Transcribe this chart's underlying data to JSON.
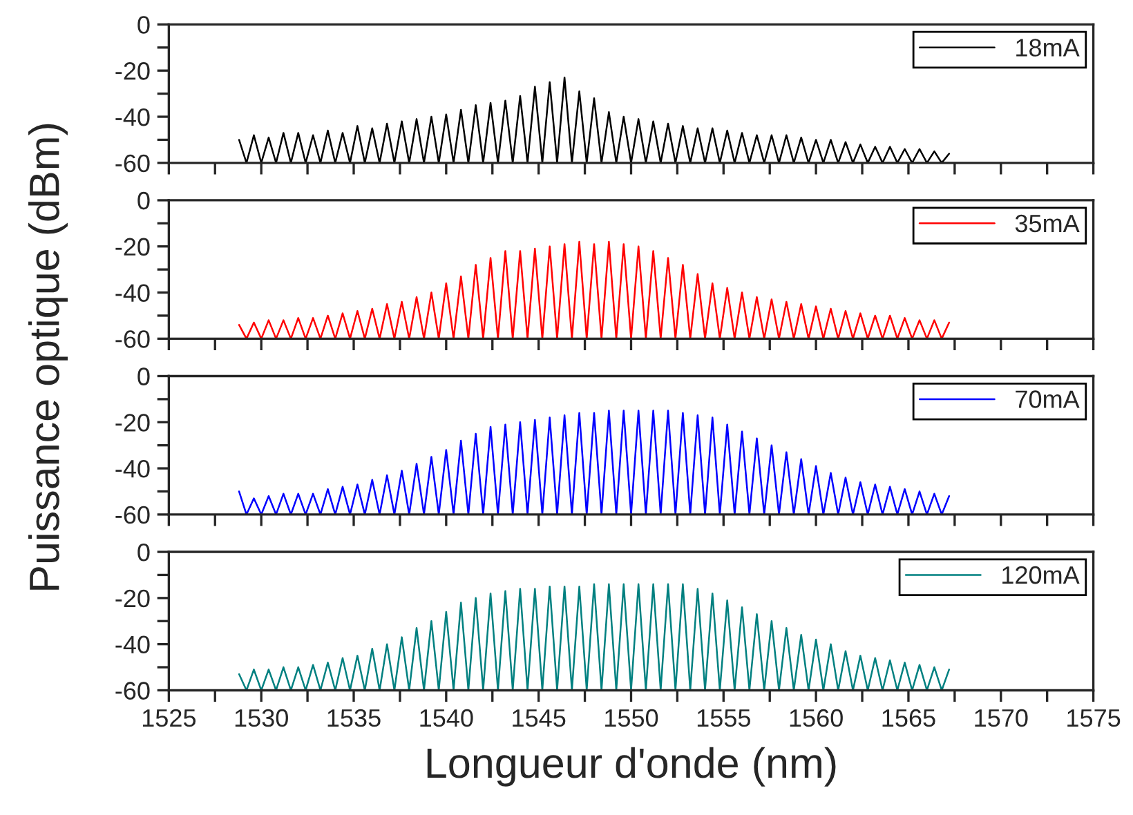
{
  "chart_data": [
    {
      "type": "line",
      "ylabel": "Puissance optique (dBm)",
      "tick_labels": "y",
      "legend": "top right",
      "x": [
        1528.8,
        1529.2,
        1529.6,
        1530.0,
        1530.4,
        1530.8,
        1531.2,
        1531.6,
        1532.0,
        1532.4,
        1532.8,
        1533.2,
        1533.6,
        1534.0,
        1534.4,
        1534.8,
        1535.2,
        1535.6,
        1536.0,
        1536.4,
        1536.8,
        1537.2,
        1537.6,
        1538.0,
        1538.4,
        1538.8,
        1539.2,
        1539.6,
        1540.0,
        1540.4,
        1540.8,
        1541.2,
        1541.6,
        1542.0,
        1542.4,
        1542.8,
        1543.2,
        1543.6,
        1544.0,
        1544.4,
        1544.8,
        1545.2,
        1545.6,
        1546.0,
        1546.4,
        1546.8,
        1547.2,
        1547.6,
        1548.0,
        1548.4,
        1548.8,
        1549.2,
        1549.6,
        1550.0,
        1550.4,
        1550.8,
        1551.2,
        1551.6,
        1552.0,
        1552.4,
        1552.8,
        1553.2,
        1553.6,
        1554.0,
        1554.4,
        1554.8,
        1555.2,
        1555.6,
        1556.0,
        1556.4,
        1556.8,
        1557.2,
        1557.6,
        1558.0,
        1558.4,
        1558.8,
        1559.2,
        1559.6,
        1560.0,
        1560.4,
        1560.8,
        1561.2,
        1561.6,
        1562.0,
        1562.4,
        1562.8,
        1563.2,
        1563.6,
        1564.0,
        1564.4,
        1564.8,
        1565.2,
        1565.6,
        1566.0,
        1566.4,
        1566.8,
        1567.2
      ],
      "series": [
        {
          "name": "18mA",
          "color": "#000000",
          "values": [
            -50,
            -60,
            -48,
            -60,
            -49,
            -60,
            -47,
            -60,
            -47,
            -60,
            -48,
            -60,
            -46,
            -60,
            -47,
            -60,
            -44,
            -60,
            -45,
            -60,
            -43,
            -60,
            -42,
            -60,
            -41,
            -60,
            -40,
            -60,
            -39,
            -60,
            -37,
            -60,
            -35,
            -60,
            -34,
            -60,
            -33,
            -60,
            -31,
            -60,
            -27,
            -60,
            -25,
            -60,
            -23,
            -60,
            -29,
            -60,
            -32,
            -60,
            -38,
            -60,
            -40,
            -60,
            -41,
            -60,
            -42,
            -60,
            -43,
            -60,
            -44,
            -60,
            -45,
            -60,
            -45,
            -60,
            -46,
            -60,
            -47,
            -60,
            -48,
            -60,
            -48,
            -60,
            -48,
            -60,
            -49,
            -60,
            -50,
            -60,
            -50,
            -60,
            -51,
            -60,
            -52,
            -60,
            -53,
            -60,
            -53,
            -60,
            -54,
            -60,
            -54,
            -60,
            -55,
            -60,
            -56
          ]
        }
      ],
      "xlim": [
        1525,
        1575
      ],
      "xticks": [
        1525,
        {
          "value": 1527.5,
          "label": null
        },
        1530,
        {
          "value": 1532.5,
          "label": null
        },
        1535,
        {
          "value": 1537.5,
          "label": null
        },
        1540,
        {
          "value": 1542.5,
          "label": null
        },
        1545,
        {
          "value": 1547.5,
          "label": null
        },
        1550,
        {
          "value": 1552.5,
          "label": null
        },
        1555,
        {
          "value": 1557.5,
          "label": null
        },
        1560,
        {
          "value": 1562.5,
          "label": null
        },
        1565,
        {
          "value": 1567.5,
          "label": null
        },
        1570,
        {
          "value": 1572.5,
          "label": null
        },
        1575
      ],
      "ylim": [
        -60,
        0
      ],
      "yticks": [
        -60,
        {
          "value": -50,
          "label": null
        },
        -40,
        {
          "value": -30,
          "label": null
        },
        -20,
        {
          "value": -10,
          "label": null
        },
        0
      ]
    },
    {
      "type": "line",
      "tick_labels": "y",
      "legend": "top right",
      "x": [
        1528.8,
        1529.2,
        1529.6,
        1530.0,
        1530.4,
        1530.8,
        1531.2,
        1531.6,
        1532.0,
        1532.4,
        1532.8,
        1533.2,
        1533.6,
        1534.0,
        1534.4,
        1534.8,
        1535.2,
        1535.6,
        1536.0,
        1536.4,
        1536.8,
        1537.2,
        1537.6,
        1538.0,
        1538.4,
        1538.8,
        1539.2,
        1539.6,
        1540.0,
        1540.4,
        1540.8,
        1541.2,
        1541.6,
        1542.0,
        1542.4,
        1542.8,
        1543.2,
        1543.6,
        1544.0,
        1544.4,
        1544.8,
        1545.2,
        1545.6,
        1546.0,
        1546.4,
        1546.8,
        1547.2,
        1547.6,
        1548.0,
        1548.4,
        1548.8,
        1549.2,
        1549.6,
        1550.0,
        1550.4,
        1550.8,
        1551.2,
        1551.6,
        1552.0,
        1552.4,
        1552.8,
        1553.2,
        1553.6,
        1554.0,
        1554.4,
        1554.8,
        1555.2,
        1555.6,
        1556.0,
        1556.4,
        1556.8,
        1557.2,
        1557.6,
        1558.0,
        1558.4,
        1558.8,
        1559.2,
        1559.6,
        1560.0,
        1560.4,
        1560.8,
        1561.2,
        1561.6,
        1562.0,
        1562.4,
        1562.8,
        1563.2,
        1563.6,
        1564.0,
        1564.4,
        1564.8,
        1565.2,
        1565.6,
        1566.0,
        1566.4,
        1566.8,
        1567.2
      ],
      "series": [
        {
          "name": "35mA",
          "color": "#ff0000",
          "values": [
            -54,
            -60,
            -53,
            -60,
            -52,
            -60,
            -52,
            -60,
            -51,
            -60,
            -51,
            -60,
            -50,
            -60,
            -49,
            -60,
            -48,
            -60,
            -47,
            -60,
            -45,
            -60,
            -44,
            -60,
            -42,
            -60,
            -40,
            -60,
            -36,
            -60,
            -33,
            -60,
            -28,
            -60,
            -25,
            -60,
            -22,
            -60,
            -22,
            -60,
            -21,
            -60,
            -20,
            -60,
            -19,
            -60,
            -18,
            -60,
            -19,
            -60,
            -18,
            -60,
            -19,
            -60,
            -20,
            -60,
            -22,
            -60,
            -25,
            -60,
            -28,
            -60,
            -32,
            -60,
            -36,
            -60,
            -38,
            -60,
            -40,
            -60,
            -42,
            -60,
            -43,
            -60,
            -44,
            -60,
            -45,
            -60,
            -46,
            -60,
            -47,
            -60,
            -48,
            -60,
            -49,
            -60,
            -50,
            -60,
            -50,
            -60,
            -51,
            -60,
            -52,
            -60,
            -52,
            -60,
            -53
          ]
        }
      ],
      "xlim": [
        1525,
        1575
      ],
      "xticks": [
        1525,
        {
          "value": 1527.5,
          "label": null
        },
        1530,
        {
          "value": 1532.5,
          "label": null
        },
        1535,
        {
          "value": 1537.5,
          "label": null
        },
        1540,
        {
          "value": 1542.5,
          "label": null
        },
        1545,
        {
          "value": 1547.5,
          "label": null
        },
        1550,
        {
          "value": 1552.5,
          "label": null
        },
        1555,
        {
          "value": 1557.5,
          "label": null
        },
        1560,
        {
          "value": 1562.5,
          "label": null
        },
        1565,
        {
          "value": 1567.5,
          "label": null
        },
        1570,
        {
          "value": 1572.5,
          "label": null
        },
        1575
      ],
      "ylim": [
        -60,
        0
      ],
      "yticks": [
        -60,
        {
          "value": -50,
          "label": null
        },
        -40,
        {
          "value": -30,
          "label": null
        },
        -20,
        {
          "value": -10,
          "label": null
        },
        0
      ]
    },
    {
      "type": "line",
      "tick_labels": "y",
      "legend": "top right",
      "x": [
        1528.8,
        1529.2,
        1529.6,
        1530.0,
        1530.4,
        1530.8,
        1531.2,
        1531.6,
        1532.0,
        1532.4,
        1532.8,
        1533.2,
        1533.6,
        1534.0,
        1534.4,
        1534.8,
        1535.2,
        1535.6,
        1536.0,
        1536.4,
        1536.8,
        1537.2,
        1537.6,
        1538.0,
        1538.4,
        1538.8,
        1539.2,
        1539.6,
        1540.0,
        1540.4,
        1540.8,
        1541.2,
        1541.6,
        1542.0,
        1542.4,
        1542.8,
        1543.2,
        1543.6,
        1544.0,
        1544.4,
        1544.8,
        1545.2,
        1545.6,
        1546.0,
        1546.4,
        1546.8,
        1547.2,
        1547.6,
        1548.0,
        1548.4,
        1548.8,
        1549.2,
        1549.6,
        1550.0,
        1550.4,
        1550.8,
        1551.2,
        1551.6,
        1552.0,
        1552.4,
        1552.8,
        1553.2,
        1553.6,
        1554.0,
        1554.4,
        1554.8,
        1555.2,
        1555.6,
        1556.0,
        1556.4,
        1556.8,
        1557.2,
        1557.6,
        1558.0,
        1558.4,
        1558.8,
        1559.2,
        1559.6,
        1560.0,
        1560.4,
        1560.8,
        1561.2,
        1561.6,
        1562.0,
        1562.4,
        1562.8,
        1563.2,
        1563.6,
        1564.0,
        1564.4,
        1564.8,
        1565.2,
        1565.6,
        1566.0,
        1566.4,
        1566.8,
        1567.2
      ],
      "series": [
        {
          "name": "70mA",
          "color": "#0000ff",
          "values": [
            -50,
            -60,
            -53,
            -60,
            -52,
            -60,
            -51,
            -60,
            -51,
            -60,
            -51,
            -60,
            -49,
            -60,
            -48,
            -60,
            -47,
            -60,
            -45,
            -60,
            -43,
            -60,
            -41,
            -60,
            -38,
            -60,
            -35,
            -60,
            -32,
            -60,
            -28,
            -60,
            -25,
            -60,
            -22,
            -60,
            -21,
            -60,
            -20,
            -60,
            -19,
            -60,
            -18,
            -60,
            -17,
            -60,
            -16,
            -60,
            -16,
            -60,
            -15,
            -60,
            -15,
            -60,
            -15,
            -60,
            -15,
            -60,
            -15,
            -60,
            -16,
            -60,
            -17,
            -60,
            -18,
            -60,
            -21,
            -60,
            -24,
            -60,
            -27,
            -60,
            -30,
            -60,
            -33,
            -60,
            -36,
            -60,
            -39,
            -60,
            -42,
            -60,
            -44,
            -60,
            -46,
            -60,
            -47,
            -60,
            -48,
            -60,
            -49,
            -60,
            -50,
            -60,
            -51,
            -60,
            -52
          ]
        }
      ],
      "xlim": [
        1525,
        1575
      ],
      "xticks": [
        1525,
        {
          "value": 1527.5,
          "label": null
        },
        1530,
        {
          "value": 1532.5,
          "label": null
        },
        1535,
        {
          "value": 1537.5,
          "label": null
        },
        1540,
        {
          "value": 1542.5,
          "label": null
        },
        1545,
        {
          "value": 1547.5,
          "label": null
        },
        1550,
        {
          "value": 1552.5,
          "label": null
        },
        1555,
        {
          "value": 1557.5,
          "label": null
        },
        1560,
        {
          "value": 1562.5,
          "label": null
        },
        1565,
        {
          "value": 1567.5,
          "label": null
        },
        1570,
        {
          "value": 1572.5,
          "label": null
        },
        1575
      ],
      "ylim": [
        -60,
        0
      ],
      "yticks": [
        -60,
        {
          "value": -50,
          "label": null
        },
        -40,
        {
          "value": -30,
          "label": null
        },
        -20,
        {
          "value": -10,
          "label": null
        },
        0
      ]
    },
    {
      "type": "line",
      "xlabel": "Longueur d'onde (nm)",
      "legend": "top right",
      "x": [
        1528.8,
        1529.2,
        1529.6,
        1530.0,
        1530.4,
        1530.8,
        1531.2,
        1531.6,
        1532.0,
        1532.4,
        1532.8,
        1533.2,
        1533.6,
        1534.0,
        1534.4,
        1534.8,
        1535.2,
        1535.6,
        1536.0,
        1536.4,
        1536.8,
        1537.2,
        1537.6,
        1538.0,
        1538.4,
        1538.8,
        1539.2,
        1539.6,
        1540.0,
        1540.4,
        1540.8,
        1541.2,
        1541.6,
        1542.0,
        1542.4,
        1542.8,
        1543.2,
        1543.6,
        1544.0,
        1544.4,
        1544.8,
        1545.2,
        1545.6,
        1546.0,
        1546.4,
        1546.8,
        1547.2,
        1547.6,
        1548.0,
        1548.4,
        1548.8,
        1549.2,
        1549.6,
        1550.0,
        1550.4,
        1550.8,
        1551.2,
        1551.6,
        1552.0,
        1552.4,
        1552.8,
        1553.2,
        1553.6,
        1554.0,
        1554.4,
        1554.8,
        1555.2,
        1555.6,
        1556.0,
        1556.4,
        1556.8,
        1557.2,
        1557.6,
        1558.0,
        1558.4,
        1558.8,
        1559.2,
        1559.6,
        1560.0,
        1560.4,
        1560.8,
        1561.2,
        1561.6,
        1562.0,
        1562.4,
        1562.8,
        1563.2,
        1563.6,
        1564.0,
        1564.4,
        1564.8,
        1565.2,
        1565.6,
        1566.0,
        1566.4,
        1566.8,
        1567.2
      ],
      "series": [
        {
          "name": "120mA",
          "color": "#008080",
          "values": [
            -53,
            -60,
            -51,
            -60,
            -51,
            -60,
            -50,
            -60,
            -50,
            -60,
            -49,
            -60,
            -48,
            -60,
            -46,
            -60,
            -45,
            -60,
            -42,
            -60,
            -40,
            -60,
            -37,
            -60,
            -33,
            -60,
            -30,
            -60,
            -26,
            -60,
            -22,
            -60,
            -20,
            -60,
            -18,
            -60,
            -17,
            -60,
            -16,
            -60,
            -16,
            -60,
            -15,
            -60,
            -15,
            -60,
            -15,
            -60,
            -14,
            -60,
            -14,
            -60,
            -14,
            -60,
            -14,
            -60,
            -14,
            -60,
            -14,
            -60,
            -14,
            -60,
            -16,
            -60,
            -18,
            -60,
            -21,
            -60,
            -24,
            -60,
            -27,
            -60,
            -30,
            -60,
            -33,
            -60,
            -36,
            -60,
            -38,
            -60,
            -40,
            -60,
            -43,
            -60,
            -45,
            -60,
            -46,
            -60,
            -47,
            -60,
            -48,
            -60,
            -49,
            -60,
            -50,
            -60,
            -51
          ]
        }
      ],
      "xlim": [
        1525,
        1575
      ],
      "xticks": [
        1525,
        {
          "value": 1527.5,
          "label": null
        },
        1530,
        {
          "value": 1532.5,
          "label": null
        },
        1535,
        {
          "value": 1537.5,
          "label": null
        },
        1540,
        {
          "value": 1542.5,
          "label": null
        },
        1545,
        {
          "value": 1547.5,
          "label": null
        },
        1550,
        {
          "value": 1552.5,
          "label": null
        },
        1555,
        {
          "value": 1557.5,
          "label": null
        },
        1560,
        {
          "value": 1562.5,
          "label": null
        },
        1565,
        {
          "value": 1567.5,
          "label": null
        },
        1570,
        {
          "value": 1572.5,
          "label": null
        },
        1575
      ],
      "ylim": [
        -60,
        0
      ],
      "yticks": [
        -60,
        {
          "value": -50,
          "label": null
        },
        -40,
        {
          "value": -30,
          "label": null
        },
        -20,
        {
          "value": -10,
          "label": null
        },
        0
      ]
    }
  ]
}
